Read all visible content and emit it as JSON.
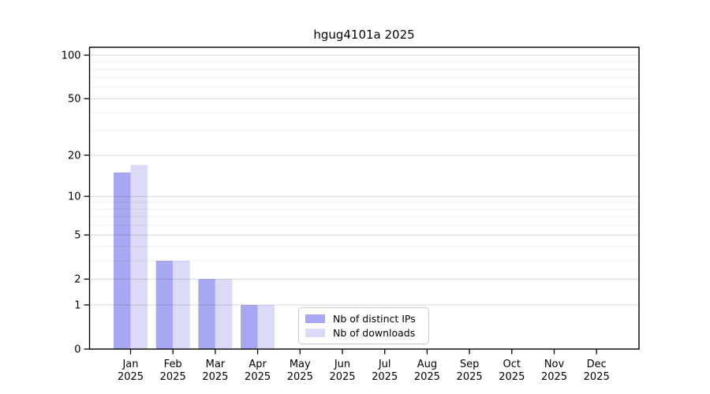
{
  "chart_data": {
    "type": "bar",
    "title": "hgug4101a 2025",
    "categories": [
      "Jan",
      "Feb",
      "Mar",
      "Apr",
      "May",
      "Jun",
      "Jul",
      "Aug",
      "Sep",
      "Oct",
      "Nov",
      "Dec"
    ],
    "category_year": "2025",
    "series": [
      {
        "name": "Nb of distinct IPs",
        "color": "#a8a8f2",
        "values": [
          15,
          3,
          2,
          1,
          0,
          0,
          0,
          0,
          0,
          0,
          0,
          0
        ]
      },
      {
        "name": "Nb of downloads",
        "color": "#dbdbf8",
        "values": [
          17,
          3,
          2,
          1,
          0,
          0,
          0,
          0,
          0,
          0,
          0,
          0
        ]
      }
    ],
    "yscale": "log1p",
    "ylim": [
      0,
      117
    ],
    "ytick_values": [
      0,
      1,
      2,
      5,
      10,
      20,
      50,
      100
    ],
    "ytick_labels": [
      "0",
      "1",
      "2",
      "5",
      "10",
      "20",
      "50",
      "100"
    ],
    "minor_gridline_values": [
      3,
      4,
      6,
      7,
      8,
      9,
      30,
      40,
      60,
      70,
      80,
      90
    ],
    "grid": "horizontal gridlines, drawn semi-transparent over bars",
    "legend_position": "inside bottom-center",
    "colors": {
      "axis": "#000000",
      "background": "#ffffff",
      "major_grid": "rgba(0,0,0,0.15)",
      "minor_grid": "rgba(0,0,0,0.07)",
      "legend_border": "#c9c9c9",
      "text": "#000000"
    }
  }
}
